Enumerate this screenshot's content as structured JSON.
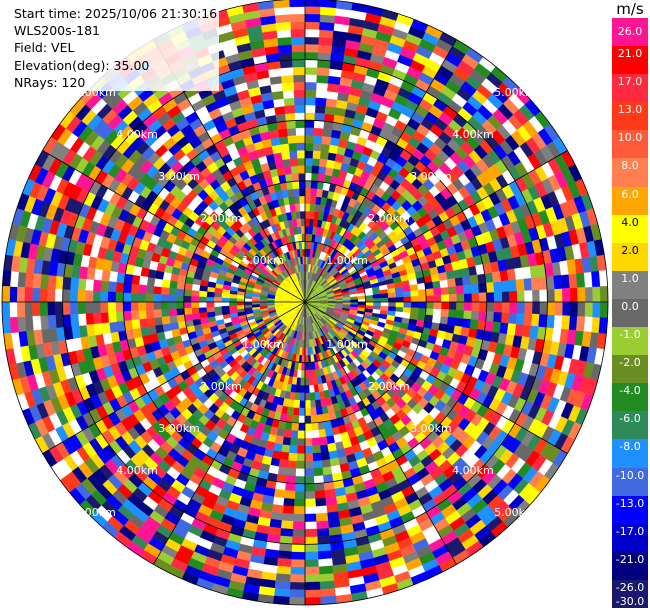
{
  "info": {
    "start_time": "Start time: 2025/10/06 21:30:16",
    "site": "WLS200s-181",
    "field": "Field: VEL",
    "elevation": "Elevation(deg): 35.00",
    "nrays": "NRays: 120"
  },
  "colorbar": {
    "unit": "m/s",
    "labels": [
      "26.0",
      "21.0",
      "17.0",
      "13.0",
      "10.0",
      "8.0",
      "6.0",
      "4.0",
      "2.0",
      "1.0",
      "0.0",
      "-1.0",
      "-2.0",
      "-4.0",
      "-6.0",
      "-8.0",
      "-10.0",
      "-13.0",
      "-17.0",
      "-21.0",
      "-26.0",
      "-30.0"
    ],
    "colors": [
      "#ff1493",
      "#ff0000",
      "#ff2a40",
      "#ff3a1a",
      "#ff5a3a",
      "#ff7f50",
      "#ffa500",
      "#ffff00",
      "#ffd700",
      "#808080",
      "#696969",
      "#9acd32",
      "#6b8e23",
      "#228b22",
      "#2e8b57",
      "#1e90ff",
      "#4169e1",
      "#0000ff",
      "#0000cd",
      "#000080",
      "#191970"
    ]
  },
  "chart_data": {
    "type": "heatmap",
    "projection": "polar-ppi",
    "field": "VEL",
    "units": "m/s",
    "n_rays": 120,
    "elevation_deg": 35.0,
    "max_range_km": 5.0,
    "range_ring_labels": [
      "1.00km",
      "2.00km",
      "3.00km",
      "4.00km",
      "5.00km"
    ],
    "range_rings_km": [
      1,
      2,
      3,
      4,
      5
    ],
    "noise": true
  }
}
